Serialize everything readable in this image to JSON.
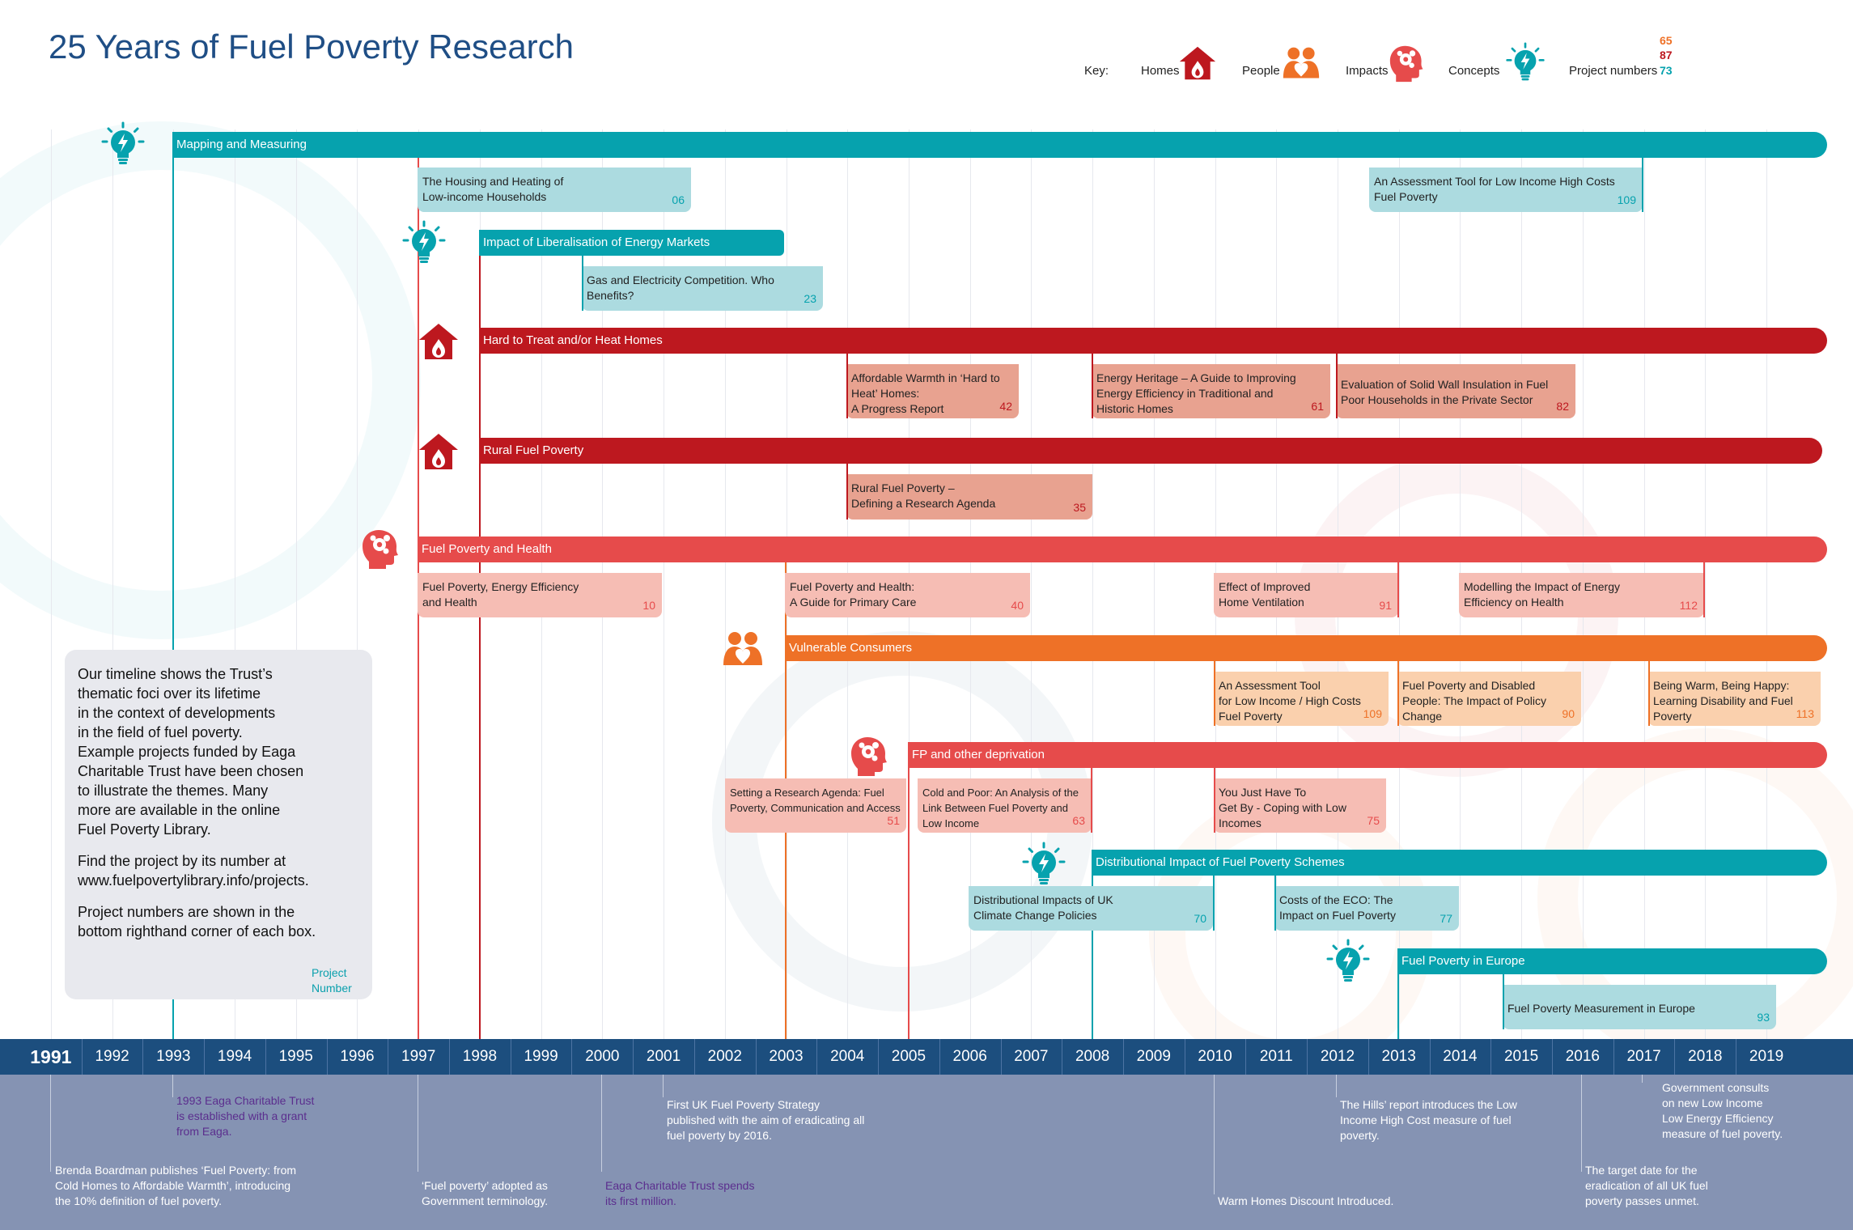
{
  "title": "25 Years of Fuel Poverty Research",
  "colors": {
    "teal": "#06a2ae",
    "teal_box": "#acdbe0",
    "red": "#bd181f",
    "red_box": "#e8a290",
    "coral": "#e64b4b",
    "coral_box": "#f6bdb4",
    "orange": "#ee7127",
    "orange_box": "#fad0ad",
    "navy": "#1c4e7e",
    "slate": "#8593b3"
  },
  "key": {
    "label": "Key:",
    "items": [
      {
        "label": "Homes",
        "icon": "house-icon",
        "color": "#bd181f"
      },
      {
        "label": "People",
        "icon": "people-icon",
        "color": "#ee7127"
      },
      {
        "label": "Impacts",
        "icon": "head-icon",
        "color": "#e64b4b"
      },
      {
        "label": "Concepts",
        "icon": "lightbulb-icon",
        "color": "#06a2ae"
      }
    ],
    "project_numbers_label": "Project numbers",
    "project_number_examples": [
      {
        "value": "65",
        "color": "#ee7127"
      },
      {
        "value": "87",
        "color": "#bd181f"
      },
      {
        "value": "73",
        "color": "#06a2ae"
      }
    ]
  },
  "years": [
    "1991",
    "1992",
    "1993",
    "1994",
    "1995",
    "1996",
    "1997",
    "1998",
    "1999",
    "2000",
    "2001",
    "2002",
    "2003",
    "2004",
    "2005",
    "2006",
    "2007",
    "2008",
    "2009",
    "2010",
    "2011",
    "2012",
    "2013",
    "2014",
    "2015",
    "2016",
    "2017",
    "2018",
    "2019"
  ],
  "themes": [
    {
      "label": "Mapping and Measuring",
      "icon": "lightbulb-icon",
      "start_year": 1993,
      "category": "concepts",
      "color": "#06a2ae"
    },
    {
      "label": "Impact of Liberalisation of Energy Markets",
      "icon": "lightbulb-icon",
      "start_year": 1998,
      "end_year": 2003,
      "category": "concepts",
      "color": "#06a2ae"
    },
    {
      "label": "Hard to Treat and/or Heat Homes",
      "icon": "house-icon",
      "start_year": 1998,
      "category": "homes",
      "color": "#bd181f"
    },
    {
      "label": "Rural Fuel Poverty",
      "icon": "house-icon",
      "start_year": 1998,
      "category": "homes",
      "color": "#bd181f"
    },
    {
      "label": "Fuel Poverty and Health",
      "icon": "head-icon",
      "start_year": 1997,
      "category": "impacts",
      "color": "#e64b4b"
    },
    {
      "label": "Vulnerable Consumers",
      "icon": "people-icon",
      "start_year": 2003,
      "category": "people",
      "color": "#ee7127"
    },
    {
      "label": "FP and other deprivation",
      "icon": "head-icon",
      "start_year": 2005,
      "category": "impacts",
      "color": "#e64b4b"
    },
    {
      "label": "Distributional Impact of Fuel Poverty Schemes",
      "icon": "lightbulb-icon",
      "start_year": 2008,
      "category": "concepts",
      "color": "#06a2ae"
    },
    {
      "label": "Fuel Poverty in Europe",
      "icon": "lightbulb-icon",
      "start_year": 2013,
      "category": "concepts",
      "color": "#06a2ae"
    }
  ],
  "projects": [
    {
      "theme": 0,
      "text": "The Housing and Heating of\nLow-income Households",
      "number": "06"
    },
    {
      "theme": 0,
      "text": "An Assessment Tool for Low Income High Costs\nFuel Poverty",
      "number": "109"
    },
    {
      "theme": 1,
      "text": "Gas and Electricity Competition. Who\nBenefits?",
      "number": "23"
    },
    {
      "theme": 2,
      "text": "Affordable Warmth in ‘Hard to\nHeat’ Homes:\nA Progress Report",
      "number": "42"
    },
    {
      "theme": 2,
      "text": "Energy Heritage – A Guide to Improving\nEnergy Efficiency in Traditional and\nHistoric Homes",
      "number": "61"
    },
    {
      "theme": 2,
      "text": "Evaluation of Solid Wall Insulation in Fuel\nPoor Households in the Private Sector",
      "number": "82"
    },
    {
      "theme": 3,
      "text": "Rural Fuel Poverty –\nDefining a Research Agenda",
      "number": "35"
    },
    {
      "theme": 4,
      "text": "Fuel Poverty, Energy Efficiency\nand Health",
      "number": "10"
    },
    {
      "theme": 4,
      "text": "Fuel Poverty and Health:\nA Guide for Primary Care",
      "number": "40"
    },
    {
      "theme": 4,
      "text": "Effect of Improved\nHome Ventilation",
      "number": "91"
    },
    {
      "theme": 4,
      "text": "Modelling the Impact of Energy\nEfficiency on Health",
      "number": "112"
    },
    {
      "theme": 5,
      "text": "An Assessment Tool\nfor Low Income / High Costs\nFuel Poverty",
      "number": "109"
    },
    {
      "theme": 5,
      "text": "Fuel Poverty and Disabled\nPeople: The Impact of Policy\nChange",
      "number": "90"
    },
    {
      "theme": 5,
      "text": "Being Warm, Being Happy:\nLearning Disability and Fuel\nPoverty",
      "number": "113"
    },
    {
      "theme": 6,
      "text": "Setting a Research Agenda: Fuel\nPoverty, Communication and Access",
      "number": "51"
    },
    {
      "theme": 6,
      "text": "Cold and Poor: An Analysis of the\nLink Between Fuel Poverty and\nLow Income",
      "number": "63"
    },
    {
      "theme": 6,
      "text": "You Just Have To\nGet By - Coping with Low\nIncomes",
      "number": "75"
    },
    {
      "theme": 7,
      "text": "Distributional Impacts of UK\nClimate Change Policies",
      "number": "70"
    },
    {
      "theme": 7,
      "text": "Costs of the ECO: The\nImpact on Fuel Poverty",
      "number": "77"
    },
    {
      "theme": 8,
      "text": "Fuel Poverty Measurement in Europe",
      "number": "93"
    }
  ],
  "info": {
    "paragraphs": [
      "Our timeline shows the Trust’s\nthematic foci over its lifetime\nin the context of developments\nin the field of fuel poverty.\nExample projects funded by Eaga\nCharitable Trust have been chosen\nto illustrate the themes. Many\nmore are available in the online\nFuel Poverty Library.",
      "Find the project by its number at\nwww.fuelpovertylibrary.info/projects.",
      "Project numbers are shown in the\nbottom righthand corner of each box."
    ],
    "project_number_label": "Project\nNumber"
  },
  "events": [
    {
      "year": 1991,
      "text": "Brenda Boardman publishes ‘Fuel Poverty: from\nCold Homes to Affordable Warmth’, introducing\nthe 10% definition of fuel poverty.",
      "color": "#ffffff"
    },
    {
      "year": 1993,
      "text": "1993 Eaga Charitable Trust\nis established with a grant\nfrom Eaga.",
      "color": "#5b2e8e"
    },
    {
      "year": 1997,
      "text": "‘Fuel poverty’ adopted as\nGovernment terminology.",
      "color": "#ffffff"
    },
    {
      "year": 2000,
      "text": "Eaga Charitable Trust spends\nits first million.",
      "color": "#5b2e8e"
    },
    {
      "year": 2001,
      "text": "First UK Fuel Poverty Strategy\npublished with the aim of eradicating all\nfuel poverty by 2016.",
      "color": "#ffffff"
    },
    {
      "year": 2010,
      "text": "Warm Homes Discount Introduced.",
      "color": "#ffffff"
    },
    {
      "year": 2012,
      "text": "The Hills’ report introduces the Low\nIncome High Cost measure of fuel\npoverty.",
      "color": "#ffffff"
    },
    {
      "year": 2016,
      "text": "The target date for the\neradication of all UK fuel\npoverty passes unmet.",
      "color": "#ffffff"
    },
    {
      "year": 2017,
      "text": "Government consults\non new Low Income\nLow Energy Efficiency\nmeasure of fuel poverty.",
      "color": "#ffffff"
    }
  ]
}
